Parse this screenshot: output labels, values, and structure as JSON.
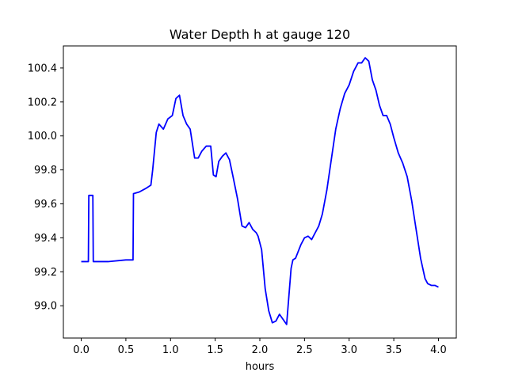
{
  "chart_data": {
    "type": "line",
    "title": "Water Depth h at gauge 120",
    "xlabel": "hours",
    "ylabel": "",
    "xlim": [
      -0.2,
      4.2
    ],
    "ylim": [
      98.81,
      100.53
    ],
    "xticks": [
      0.0,
      0.5,
      1.0,
      1.5,
      2.0,
      2.5,
      3.0,
      3.5,
      4.0
    ],
    "xtick_labels": [
      "0.0",
      "0.5",
      "1.0",
      "1.5",
      "2.0",
      "2.5",
      "3.0",
      "3.5",
      "4.0"
    ],
    "yticks": [
      99.0,
      99.2,
      99.4,
      99.6,
      99.8,
      100.0,
      100.2,
      100.4
    ],
    "ytick_labels": [
      "99.0",
      "99.2",
      "99.4",
      "99.6",
      "99.8",
      "100.0",
      "100.2",
      "100.4"
    ],
    "grid": false,
    "series": [
      {
        "color": "#0000ff",
        "x": [
          0.0,
          0.08,
          0.085,
          0.13,
          0.135,
          0.3,
          0.5,
          0.58,
          0.585,
          0.65,
          0.72,
          0.78,
          0.8,
          0.84,
          0.87,
          0.92,
          0.97,
          1.02,
          1.06,
          1.1,
          1.14,
          1.18,
          1.22,
          1.27,
          1.31,
          1.35,
          1.4,
          1.45,
          1.48,
          1.51,
          1.54,
          1.58,
          1.62,
          1.66,
          1.7,
          1.75,
          1.8,
          1.84,
          1.88,
          1.92,
          1.96,
          1.98,
          2.02,
          2.06,
          2.1,
          2.14,
          2.18,
          2.22,
          2.26,
          2.3,
          2.35,
          2.37,
          2.4,
          2.43,
          2.46,
          2.5,
          2.54,
          2.58,
          2.62,
          2.66,
          2.7,
          2.75,
          2.8,
          2.85,
          2.9,
          2.95,
          3.0,
          3.05,
          3.1,
          3.14,
          3.18,
          3.22,
          3.26,
          3.3,
          3.34,
          3.38,
          3.42,
          3.46,
          3.5,
          3.55,
          3.6,
          3.65,
          3.7,
          3.75,
          3.8,
          3.85,
          3.88,
          3.92,
          3.96,
          4.0
        ],
        "y": [
          99.26,
          99.26,
          99.65,
          99.65,
          99.26,
          99.26,
          99.27,
          99.27,
          99.66,
          99.67,
          99.69,
          99.71,
          99.8,
          100.02,
          100.07,
          100.04,
          100.1,
          100.12,
          100.22,
          100.24,
          100.12,
          100.07,
          100.04,
          99.87,
          99.87,
          99.91,
          99.94,
          99.94,
          99.77,
          99.76,
          99.85,
          99.88,
          99.9,
          99.86,
          99.76,
          99.63,
          99.47,
          99.46,
          99.49,
          99.45,
          99.43,
          99.41,
          99.33,
          99.1,
          98.97,
          98.9,
          98.91,
          98.95,
          98.92,
          98.89,
          99.22,
          99.27,
          99.28,
          99.32,
          99.36,
          99.4,
          99.41,
          99.39,
          99.43,
          99.47,
          99.54,
          99.68,
          99.86,
          100.04,
          100.16,
          100.25,
          100.3,
          100.38,
          100.43,
          100.43,
          100.46,
          100.44,
          100.33,
          100.27,
          100.18,
          100.12,
          100.12,
          100.07,
          99.99,
          99.9,
          99.84,
          99.76,
          99.62,
          99.45,
          99.28,
          99.16,
          99.13,
          99.12,
          99.12,
          99.11
        ]
      }
    ]
  }
}
